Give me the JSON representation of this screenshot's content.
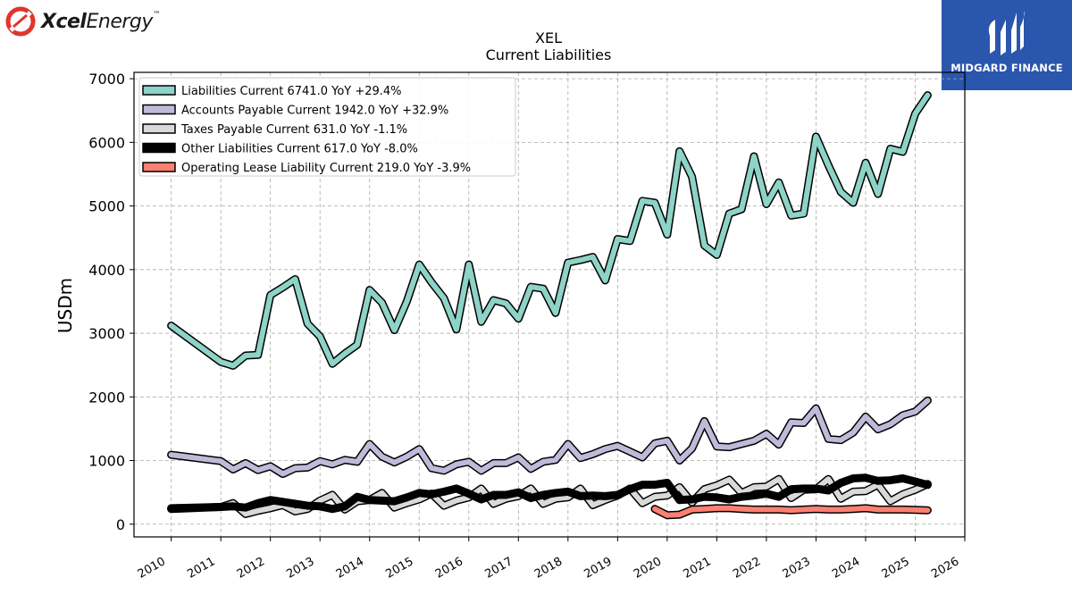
{
  "header": {
    "brand_left_bold": "Xcel",
    "brand_left_italic": "Energy",
    "brand_left_tm": "™",
    "brand_right": "MIDGARD FINANCE"
  },
  "chart_data": {
    "type": "line",
    "title": "XEL",
    "subtitle": "Current  Liabilities",
    "ylabel": "USDm",
    "xlabel": "",
    "ylim": [
      -200,
      7100
    ],
    "xlim": [
      2009.25,
      2026.0
    ],
    "yticks": [
      0,
      1000,
      2000,
      3000,
      4000,
      5000,
      6000,
      7000
    ],
    "xticks": [
      2010,
      2011,
      2012,
      2013,
      2014,
      2015,
      2016,
      2017,
      2018,
      2019,
      2020,
      2021,
      2022,
      2023,
      2024,
      2025,
      2026
    ],
    "grid": true,
    "legend_position": "top-left",
    "series": [
      {
        "name": "Liabilities Current",
        "legend": "Liabilities Current  6741.0 YoY +29.4%",
        "color": "#8dd3c7",
        "width": 6,
        "x": [
          2010.0,
          2011.0,
          2011.25,
          2011.5,
          2011.75,
          2012.0,
          2012.25,
          2012.5,
          2012.75,
          2013.0,
          2013.25,
          2013.5,
          2013.75,
          2014.0,
          2014.25,
          2014.5,
          2014.75,
          2015.0,
          2015.25,
          2015.5,
          2015.75,
          2016.0,
          2016.25,
          2016.5,
          2016.75,
          2017.0,
          2017.25,
          2017.5,
          2017.75,
          2018.0,
          2018.25,
          2018.5,
          2018.75,
          2019.0,
          2019.25,
          2019.5,
          2019.75,
          2020.0,
          2020.25,
          2020.5,
          2020.75,
          2021.0,
          2021.25,
          2021.5,
          2021.75,
          2022.0,
          2022.25,
          2022.5,
          2022.75,
          2023.0,
          2023.25,
          2023.5,
          2023.75,
          2024.0,
          2024.25,
          2024.5,
          2024.75,
          2025.0,
          2025.25
        ],
        "y": [
          3120,
          2550,
          2490,
          2650,
          2660,
          3600,
          3720,
          3850,
          3150,
          2950,
          2520,
          2680,
          2820,
          3680,
          3480,
          3050,
          3500,
          4080,
          3800,
          3550,
          3060,
          4080,
          3180,
          3520,
          3470,
          3230,
          3730,
          3700,
          3320,
          4110,
          4150,
          4200,
          3830,
          4480,
          4450,
          5080,
          5050,
          4550,
          5860,
          5460,
          4380,
          4230,
          4880,
          4950,
          5780,
          5030,
          5370,
          4850,
          4880,
          6090,
          5640,
          5220,
          5050,
          5680,
          5190,
          5900,
          5850,
          6450,
          6741
        ]
      },
      {
        "name": "Accounts Payable Current",
        "legend": "Accounts Payable Current  1942.0 YoY +32.9%",
        "color": "#bebada",
        "width": 6,
        "x": [
          2010.0,
          2011.0,
          2011.25,
          2011.5,
          2011.75,
          2012.0,
          2012.25,
          2012.5,
          2012.75,
          2013.0,
          2013.25,
          2013.5,
          2013.75,
          2014.0,
          2014.25,
          2014.5,
          2014.75,
          2015.0,
          2015.25,
          2015.5,
          2015.75,
          2016.0,
          2016.25,
          2016.5,
          2016.75,
          2017.0,
          2017.25,
          2017.5,
          2017.75,
          2018.0,
          2018.25,
          2018.5,
          2018.75,
          2019.0,
          2019.25,
          2019.5,
          2019.75,
          2020.0,
          2020.25,
          2020.5,
          2020.75,
          2021.0,
          2021.25,
          2021.5,
          2021.75,
          2022.0,
          2022.25,
          2022.5,
          2022.75,
          2023.0,
          2023.25,
          2023.5,
          2023.75,
          2024.0,
          2024.25,
          2024.5,
          2024.75,
          2025.0,
          2025.25
        ],
        "y": [
          1090,
          990,
          860,
          960,
          850,
          910,
          790,
          880,
          890,
          990,
          940,
          1010,
          980,
          1260,
          1060,
          970,
          1060,
          1180,
          880,
          840,
          940,
          980,
          840,
          960,
          960,
          1050,
          870,
          980,
          1010,
          1260,
          1040,
          1100,
          1180,
          1230,
          1140,
          1050,
          1270,
          1310,
          1000,
          1190,
          1620,
          1220,
          1210,
          1260,
          1310,
          1420,
          1250,
          1600,
          1590,
          1820,
          1340,
          1320,
          1440,
          1690,
          1490,
          1570,
          1710,
          1770,
          1942
        ]
      },
      {
        "name": "Taxes Payable Current",
        "legend": "Taxes Payable Current  631.0 YoY -1.1%",
        "color": "#d9d9d9",
        "width": 6,
        "x": [
          2010.0,
          2011.0,
          2011.25,
          2011.5,
          2011.75,
          2012.0,
          2012.25,
          2012.5,
          2012.75,
          2013.0,
          2013.25,
          2013.5,
          2013.75,
          2014.0,
          2014.25,
          2014.5,
          2014.75,
          2015.0,
          2015.25,
          2015.5,
          2015.75,
          2016.0,
          2016.25,
          2016.5,
          2016.75,
          2017.0,
          2017.25,
          2017.5,
          2017.75,
          2018.0,
          2018.25,
          2018.5,
          2018.75,
          2019.0,
          2019.25,
          2019.5,
          2019.75,
          2020.0,
          2020.25,
          2020.5,
          2020.75,
          2021.0,
          2021.25,
          2021.5,
          2021.75,
          2022.0,
          2022.25,
          2022.5,
          2022.75,
          2023.0,
          2023.25,
          2023.5,
          2023.75,
          2024.0,
          2024.25,
          2024.5,
          2024.75,
          2025.0,
          2025.25
        ],
        "y": [
          250,
          270,
          330,
          160,
          210,
          250,
          300,
          200,
          240,
          370,
          460,
          230,
          360,
          380,
          490,
          260,
          330,
          390,
          480,
          290,
          370,
          420,
          560,
          320,
          400,
          440,
          560,
          320,
          400,
          420,
          560,
          300,
          380,
          450,
          560,
          330,
          430,
          450,
          580,
          340,
          550,
          610,
          700,
          490,
          580,
          590,
          710,
          410,
          540,
          550,
          710,
          400,
          510,
          520,
          620,
          360,
          470,
          540,
          631
        ]
      },
      {
        "name": "Other Liabilities Current",
        "legend": "Other Liabilities Current  617.0 YoY -8.0%",
        "color": "#000000",
        "width": 9,
        "x": [
          2010.0,
          2011.0,
          2011.25,
          2011.5,
          2011.75,
          2012.0,
          2012.25,
          2012.5,
          2012.75,
          2013.0,
          2013.25,
          2013.5,
          2013.75,
          2014.0,
          2014.25,
          2014.5,
          2014.75,
          2015.0,
          2015.25,
          2015.5,
          2015.75,
          2016.0,
          2016.25,
          2016.5,
          2016.75,
          2017.0,
          2017.25,
          2017.5,
          2017.75,
          2018.0,
          2018.25,
          2018.5,
          2018.75,
          2019.0,
          2019.25,
          2019.5,
          2019.75,
          2020.0,
          2020.25,
          2020.5,
          2020.75,
          2021.0,
          2021.25,
          2021.5,
          2021.75,
          2022.0,
          2022.25,
          2022.5,
          2022.75,
          2023.0,
          2023.25,
          2023.5,
          2023.75,
          2024.0,
          2024.25,
          2024.5,
          2024.75,
          2025.0,
          2025.25
        ],
        "y": [
          240,
          270,
          280,
          260,
          330,
          380,
          350,
          320,
          290,
          280,
          240,
          280,
          430,
          380,
          370,
          360,
          420,
          490,
          470,
          510,
          560,
          480,
          390,
          460,
          460,
          500,
          410,
          460,
          490,
          510,
          440,
          450,
          440,
          460,
          550,
          620,
          620,
          650,
          380,
          390,
          430,
          420,
          390,
          430,
          450,
          480,
          430,
          550,
          560,
          560,
          530,
          650,
          720,
          730,
          680,
          690,
          720,
          670,
          617
        ]
      },
      {
        "name": "Operating Lease Liability Current",
        "legend": "Operating Lease Liability Current  219.0 YoY -3.9%",
        "color": "#fb8072",
        "width": 6,
        "x": [
          2019.75,
          2020.0,
          2020.25,
          2020.5,
          2020.75,
          2021.0,
          2021.25,
          2021.5,
          2021.75,
          2022.0,
          2022.25,
          2022.5,
          2022.75,
          2023.0,
          2023.25,
          2023.5,
          2023.75,
          2024.0,
          2024.25,
          2024.5,
          2024.75,
          2025.0,
          2025.25
        ],
        "y": [
          240,
          140,
          150,
          230,
          240,
          250,
          250,
          240,
          230,
          230,
          230,
          220,
          230,
          240,
          230,
          230,
          240,
          250,
          230,
          230,
          230,
          225,
          219
        ]
      }
    ]
  }
}
